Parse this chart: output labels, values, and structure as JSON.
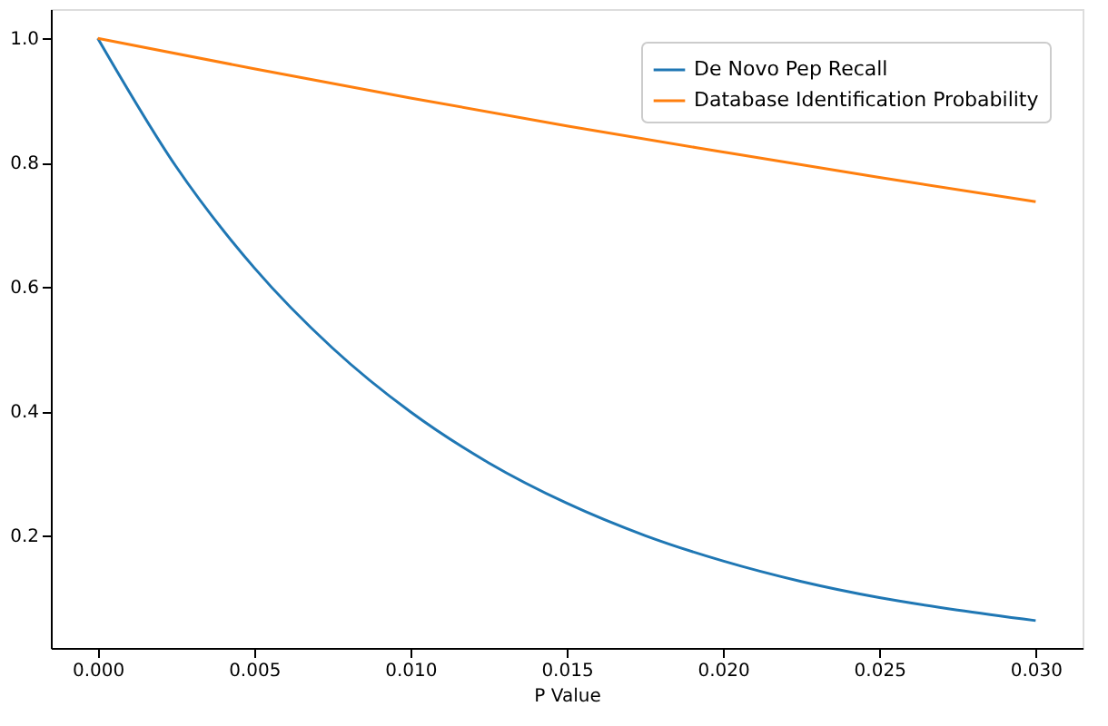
{
  "chart_data": {
    "type": "line",
    "xlabel": "P Value",
    "xlim": [
      -0.0015,
      0.0315
    ],
    "ylim": [
      0.019,
      1.047
    ],
    "xticks": [
      {
        "value": 0,
        "label": "0.000"
      },
      {
        "value": 0.005,
        "label": "0.005"
      },
      {
        "value": 0.01,
        "label": "0.010"
      },
      {
        "value": 0.015,
        "label": "0.015"
      },
      {
        "value": 0.02,
        "label": "0.020"
      },
      {
        "value": 0.025,
        "label": "0.025"
      },
      {
        "value": 0.03,
        "label": "0.030"
      }
    ],
    "yticks": [
      {
        "value": 0.2,
        "label": "0.2"
      },
      {
        "value": 0.4,
        "label": "0.4"
      },
      {
        "value": 0.6,
        "label": "0.6"
      },
      {
        "value": 0.8,
        "label": "0.8"
      },
      {
        "value": 1,
        "label": "1.0"
      }
    ],
    "grid": false,
    "legend": "top right",
    "marker": "none",
    "line_style": "solid",
    "series": [
      {
        "name": "De Novo Pep Recall",
        "color": "#1f77b4",
        "x": [
          0,
          0.0025,
          0.005,
          0.0075,
          0.01,
          0.0125,
          0.015,
          0.0175,
          0.02,
          0.0225,
          0.025,
          0.0275,
          0.03
        ],
        "values": [
          1,
          0.794,
          0.631,
          0.502,
          0.399,
          0.317,
          0.252,
          0.2,
          0.159,
          0.126,
          0.1,
          0.08,
          0.063
        ]
      },
      {
        "name": "Database Identification Probability",
        "color": "#ff7f0e",
        "x": [
          0,
          0.005,
          0.01,
          0.015,
          0.02,
          0.025,
          0.03
        ],
        "values": [
          1,
          0.951,
          0.904,
          0.859,
          0.817,
          0.776,
          0.737
        ]
      }
    ]
  }
}
